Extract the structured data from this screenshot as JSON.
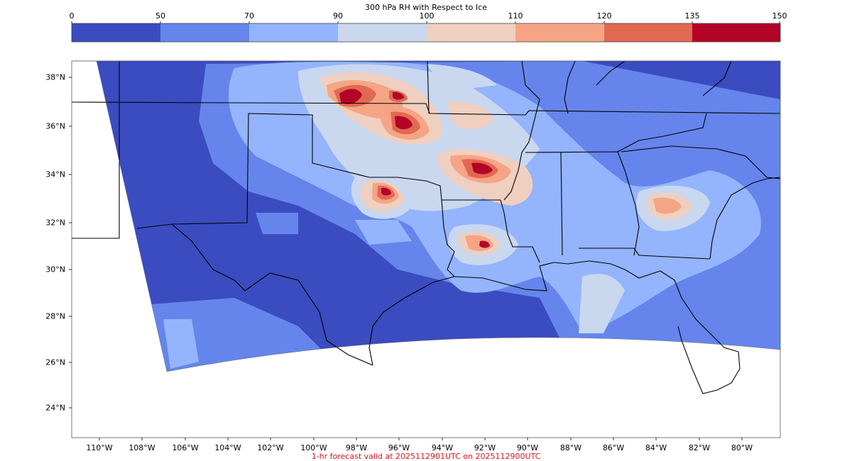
{
  "colorbar": {
    "title": "300 hPa RH with Respect to Ice",
    "ticks": [
      "0",
      "50",
      "70",
      "90",
      "100",
      "110",
      "120",
      "135",
      "150"
    ],
    "colors": [
      "#3a4cc0",
      "#6585ec",
      "#94b4fe",
      "#c9d7ef",
      "#efcfbf",
      "#f5a585",
      "#e16952",
      "#b30326"
    ]
  },
  "axes": {
    "lat_labels": [
      "38°N",
      "36°N",
      "34°N",
      "32°N",
      "30°N",
      "28°N",
      "26°N",
      "24°N"
    ],
    "lon_labels": [
      "110°W",
      "108°W",
      "106°W",
      "104°W",
      "102°W",
      "100°W",
      "98°W",
      "96°W",
      "94°W",
      "92°W",
      "90°W",
      "88°W",
      "86°W",
      "84°W",
      "82°W",
      "80°W"
    ]
  },
  "footer": "1-hr forecast valid at 2025112901UTC on 2025112900UTC",
  "chart_data": {
    "type": "heatmap",
    "title": "300 hPa RH with Respect to Ice",
    "variable": "300 hPa RH with Respect to Ice",
    "colorbar_levels": [
      0,
      50,
      70,
      90,
      100,
      110,
      120,
      135,
      150
    ],
    "lat_range": [
      22.7,
      38.7
    ],
    "lon_range": [
      -111.3,
      -78.2
    ],
    "x_ticks": [
      -110,
      -108,
      -106,
      -104,
      -102,
      -100,
      -98,
      -96,
      -94,
      -92,
      -90,
      -88,
      -86,
      -84,
      -82,
      -80
    ],
    "y_ticks": [
      24,
      26,
      28,
      30,
      32,
      34,
      36,
      38
    ],
    "grid": false,
    "legend_placement": "top"
  }
}
